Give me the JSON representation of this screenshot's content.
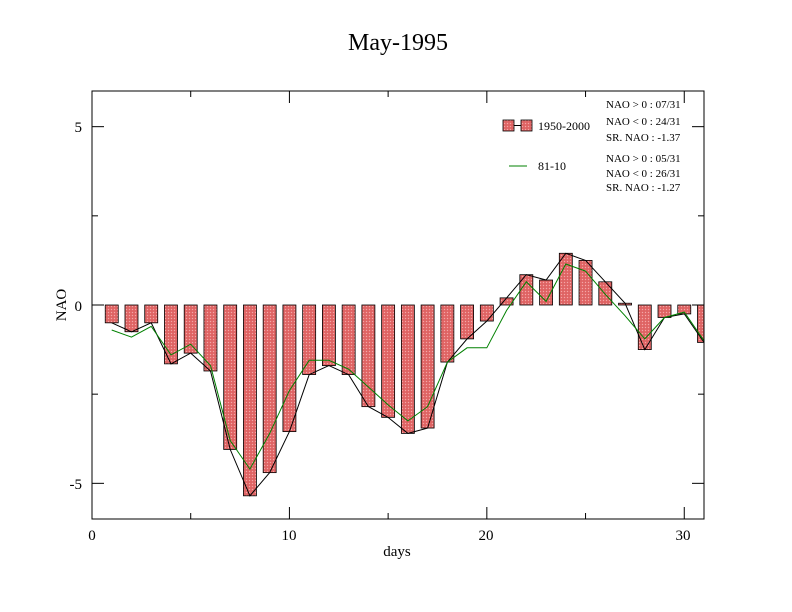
{
  "chart_data": {
    "type": "bar",
    "title": "May-1995",
    "xlabel": "days",
    "ylabel": "NAO",
    "xlim": [
      0,
      31
    ],
    "ylim": [
      -6,
      6
    ],
    "xticks": [
      "0",
      "10",
      "20",
      "30"
    ],
    "yticks": [
      "5",
      "0",
      "-5"
    ],
    "grid": false,
    "legend_position": "top-right",
    "colors": {
      "bar_fill": "#e46a6a",
      "bar_stroke": "#000000",
      "line_1950_2000": "#000000",
      "line_81_10": "#008000"
    },
    "x": [
      1,
      2,
      3,
      4,
      5,
      6,
      7,
      8,
      9,
      10,
      11,
      12,
      13,
      14,
      15,
      16,
      17,
      18,
      19,
      20,
      21,
      22,
      23,
      24,
      25,
      26,
      27,
      28,
      29,
      30,
      31
    ],
    "series": [
      {
        "name": "1950-2000",
        "style": "bars",
        "values": [
          -0.5,
          -0.75,
          -0.5,
          -1.65,
          -1.35,
          -1.85,
          -4.05,
          -5.35,
          -4.7,
          -3.55,
          -1.95,
          -1.7,
          -1.95,
          -2.85,
          -3.15,
          -3.6,
          -3.45,
          -1.6,
          -0.95,
          -0.45,
          0.2,
          0.85,
          0.7,
          1.45,
          1.25,
          0.65,
          0.05,
          -1.25,
          -0.35,
          -0.25,
          -1.05
        ]
      },
      {
        "name": "81-10",
        "style": "line",
        "values": [
          -0.7,
          -0.9,
          -0.6,
          -1.4,
          -1.1,
          -1.7,
          -3.8,
          -4.6,
          -3.6,
          -2.4,
          -1.55,
          -1.55,
          -1.8,
          -2.3,
          -2.8,
          -3.25,
          -2.85,
          -1.6,
          -1.2,
          -1.2,
          -0.15,
          0.65,
          0.1,
          1.15,
          0.95,
          0.3,
          -0.3,
          -0.95,
          -0.35,
          -0.2,
          -1.0
        ]
      }
    ],
    "stats": [
      [
        "NAO > 0 : 07/31",
        "NAO < 0 : 24/31",
        "SR. NAO : -1.37"
      ],
      [
        "NAO > 0 : 05/31",
        "NAO < 0 : 26/31",
        "SR. NAO : -1.27"
      ]
    ]
  }
}
